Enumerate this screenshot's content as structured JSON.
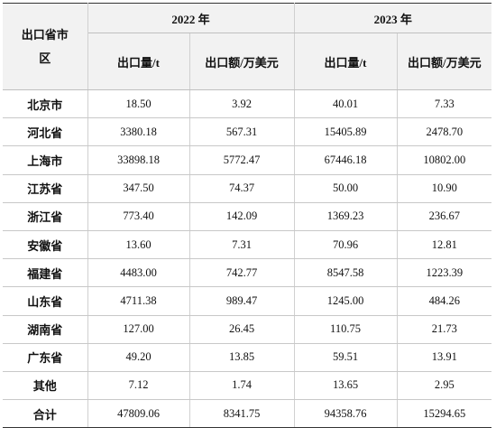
{
  "header": {
    "region_label": "出口省市区",
    "years": [
      "2022 年",
      "2023 年"
    ],
    "sub_cols": [
      "出口量/t",
      "出口额/万美元",
      "出口量/t",
      "出口额/万美元"
    ]
  },
  "rows": [
    {
      "name": "北京市",
      "v": [
        "18.50",
        "3.92",
        "40.01",
        "7.33"
      ]
    },
    {
      "name": "河北省",
      "v": [
        "3380.18",
        "567.31",
        "15405.89",
        "2478.70"
      ]
    },
    {
      "name": "上海市",
      "v": [
        "33898.18",
        "5772.47",
        "67446.18",
        "10802.00"
      ]
    },
    {
      "name": "江苏省",
      "v": [
        "347.50",
        "74.37",
        "50.00",
        "10.90"
      ]
    },
    {
      "name": "浙江省",
      "v": [
        "773.40",
        "142.09",
        "1369.23",
        "236.67"
      ]
    },
    {
      "name": "安徽省",
      "v": [
        "13.60",
        "7.31",
        "70.96",
        "12.81"
      ]
    },
    {
      "name": "福建省",
      "v": [
        "4483.00",
        "742.77",
        "8547.58",
        "1223.39"
      ]
    },
    {
      "name": "山东省",
      "v": [
        "4711.38",
        "989.47",
        "1245.00",
        "484.26"
      ]
    },
    {
      "name": "湖南省",
      "v": [
        "127.00",
        "26.45",
        "110.75",
        "21.73"
      ]
    },
    {
      "name": "广东省",
      "v": [
        "49.20",
        "13.85",
        "59.51",
        "13.91"
      ]
    },
    {
      "name": "其他",
      "v": [
        "7.12",
        "1.74",
        "13.65",
        "2.95"
      ]
    }
  ],
  "total": {
    "name": "合计",
    "v": [
      "47809.06",
      "8341.75",
      "94358.76",
      "15294.65"
    ]
  }
}
